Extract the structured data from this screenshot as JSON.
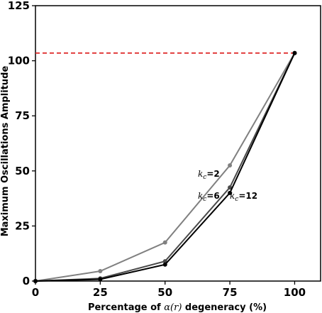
{
  "chart_data": {
    "type": "line",
    "x": [
      0,
      25,
      50,
      75,
      100
    ],
    "xlabel_parts": [
      "Percentage of ",
      "α(r)",
      " degeneracy (%)"
    ],
    "ylabel": "Maximum Oscillations Amplitude",
    "xlim": [
      0,
      110
    ],
    "ylim": [
      0,
      125
    ],
    "xticks": [
      "0",
      "25",
      "50",
      "75",
      "100"
    ],
    "yticks": [
      "0",
      "25",
      "50",
      "75",
      "100",
      "125"
    ],
    "grid": false,
    "series": [
      {
        "label_k": "k",
        "label_sub": "c",
        "label_eq": "=2",
        "color": "#808080",
        "values": [
          0,
          4.5,
          17.5,
          52.5,
          103.5
        ]
      },
      {
        "label_k": "k",
        "label_sub": "c",
        "label_eq": "=6",
        "color": "#4a4a4a",
        "values": [
          0,
          1.2,
          9,
          42.5,
          103.5
        ]
      },
      {
        "label_k": "k",
        "label_sub": "c",
        "label_eq": "=12",
        "color": "#000000",
        "values": [
          0,
          0.8,
          7.5,
          40,
          103.5
        ]
      }
    ],
    "reference_line": {
      "y": 103.5,
      "color": "#dd2222",
      "style": "dashed"
    }
  }
}
